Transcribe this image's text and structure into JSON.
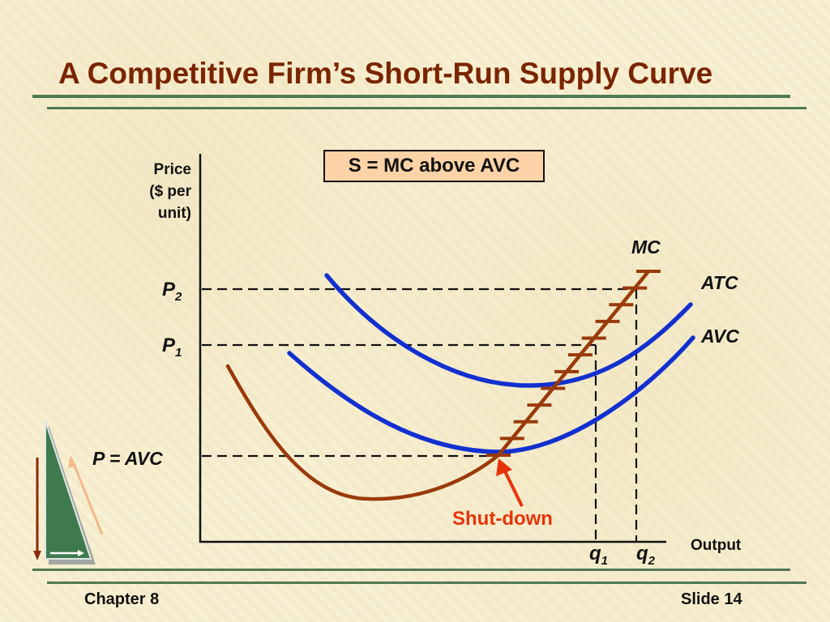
{
  "title": "A Competitive Firm’s Short-Run Supply Curve",
  "footer": {
    "chapter": "Chapter 8",
    "slide": "Slide 14"
  },
  "callout": "S = MC above AVC",
  "colors": {
    "title": "#7a2400",
    "rule": "#4e7a52",
    "mc_curve": "#9a3a0a",
    "cost_curves": "#1230d0",
    "shutdown": "#e8330a",
    "callout_fill": "#fbd3a6"
  },
  "chart_data": {
    "type": "line",
    "axis_labels": {
      "y": [
        "Price",
        "($ per",
        "unit)"
      ],
      "x": "Output"
    },
    "price_labels": [
      {
        "main": "P",
        "sub": "2"
      },
      {
        "main": "P",
        "sub": "1"
      },
      {
        "main": "P = AVC",
        "sub": ""
      }
    ],
    "quantity_labels": [
      {
        "main": "q",
        "sub": "1"
      },
      {
        "main": "q",
        "sub": "2"
      }
    ],
    "series": [
      {
        "name": "MC",
        "color": "#9a3a0a",
        "supply_segment_hatched": true
      },
      {
        "name": "ATC",
        "color": "#1230d0"
      },
      {
        "name": "AVC",
        "color": "#1230d0"
      }
    ],
    "annotation": {
      "text": "Shut-down",
      "color": "#e8330a"
    },
    "grid": false
  }
}
